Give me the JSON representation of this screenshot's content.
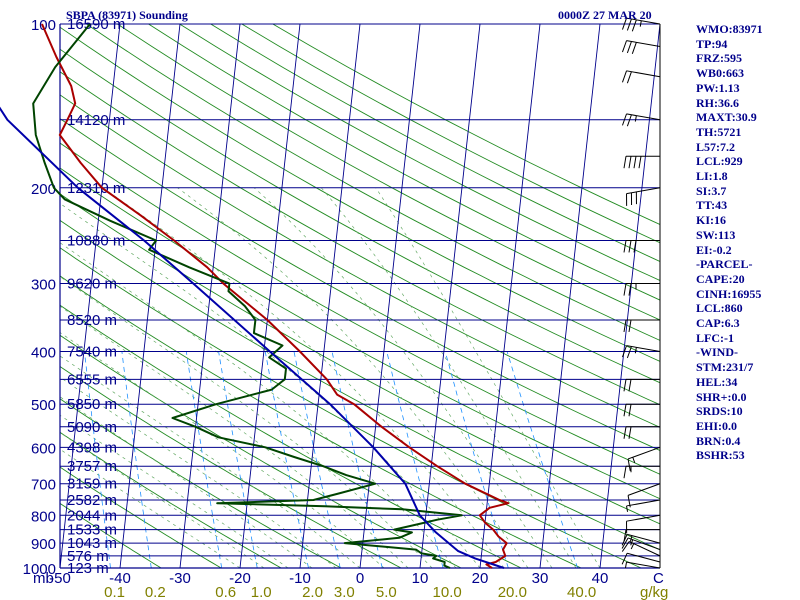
{
  "header": {
    "station": "SBPA (83971) Sounding",
    "time": "0000Z 27 MAR 20"
  },
  "indices": [
    "WMO:83971",
    "TP:94",
    "FRZ:595",
    "WB0:663",
    "PW:1.13",
    "RH:36.6",
    "MAXT:30.9",
    "TH:5721",
    "L57:7.2",
    "LCL:929",
    "LI:1.8",
    "SI:3.7",
    "TT:43",
    "KI:16",
    "SW:113",
    "EI:-0.2",
    "-PARCEL-",
    "CAPE:20",
    "CINH:16955",
    "LCL:860",
    "CAP:6.3",
    "LFC:-1",
    "-WIND-",
    "STM:231/7",
    "HEL:34",
    "SHR+:0.0",
    "SRDS:10",
    "EHI:0.0",
    "BRN:0.4",
    "BSHR:53"
  ],
  "colors": {
    "isobar": "#00008b",
    "isotherm": "#00008b",
    "dry_adiabat": "#228b22",
    "moist_adiabat": "#66aa66",
    "mixing_ratio": "#1e90ff",
    "temperature": "#aa0000",
    "dewpoint": "#004400",
    "parcel": "#0000aa",
    "barb": "#000000",
    "mixing_ratio_label": "#808000",
    "label": "#00008b"
  },
  "chart_data": {
    "type": "line",
    "title": "SBPA (83971) Sounding",
    "subtitle": "0000Z 27 MAR 20",
    "xlabel": "C",
    "ylabel": "mb",
    "x_unit_label": "C",
    "y_unit_label": "mb",
    "mixing_ratio_unit": "g/kg",
    "skew": "skew-T log-P",
    "y_scale": "log",
    "ylim": [
      1000,
      100
    ],
    "xlim": [
      -50,
      50
    ],
    "pressure_ticks": [
      100,
      200,
      300,
      400,
      500,
      600,
      700,
      800,
      900,
      1000
    ],
    "pressure_tick_labels": [
      "100",
      "200",
      "300",
      "400",
      "500",
      "600",
      "700",
      "800",
      "900",
      "1000"
    ],
    "temperature_ticks": [
      -50,
      -40,
      -30,
      -20,
      -10,
      0,
      10,
      20,
      30,
      40
    ],
    "temperature_tick_labels": [
      "-50",
      "-40",
      "-30",
      "-20",
      "-10",
      "0",
      "10",
      "20",
      "30",
      "40"
    ],
    "mixing_ratio_ticks": [
      0.1,
      0.2,
      0.6,
      1.0,
      2.0,
      3.0,
      5.0,
      10.0,
      20.0,
      40.0
    ],
    "mixing_ratio_tick_labels": [
      "0.1",
      "0.2",
      "0.6",
      "1.0",
      "2.0",
      "3.0",
      "5.0",
      "10.0",
      "20.0",
      "40.0"
    ],
    "height_levels": [
      {
        "p": 100,
        "label": "16590 m"
      },
      {
        "p": 150,
        "label": "14120 m"
      },
      {
        "p": 200,
        "label": "12310 m"
      },
      {
        "p": 250,
        "label": "10880 m"
      },
      {
        "p": 300,
        "label": "9620 m"
      },
      {
        "p": 350,
        "label": "8520 m"
      },
      {
        "p": 400,
        "label": "7540 m"
      },
      {
        "p": 450,
        "label": "6555 m"
      },
      {
        "p": 500,
        "label": "5850 m"
      },
      {
        "p": 550,
        "label": "5090 m"
      },
      {
        "p": 600,
        "label": "4398 m"
      },
      {
        "p": 650,
        "label": "3757 m"
      },
      {
        "p": 700,
        "label": "3159 m"
      },
      {
        "p": 750,
        "label": "2582 m"
      },
      {
        "p": 800,
        "label": "2044 m"
      },
      {
        "p": 850,
        "label": "1533 m"
      },
      {
        "p": 900,
        "label": "1043 m"
      },
      {
        "p": 950,
        "label": "576 m"
      },
      {
        "p": 1000,
        "label": "123 m"
      }
    ],
    "series": [
      {
        "role": "temperature",
        "points": [
          [
            1000,
            22
          ],
          [
            985,
            21
          ],
          [
            975,
            22.5
          ],
          [
            950,
            24
          ],
          [
            925,
            23.5
          ],
          [
            900,
            24
          ],
          [
            875,
            22.5
          ],
          [
            850,
            21.5
          ],
          [
            825,
            20
          ],
          [
            800,
            19
          ],
          [
            775,
            20.5
          ],
          [
            760,
            23.5
          ],
          [
            750,
            22
          ],
          [
            700,
            16
          ],
          [
            650,
            11
          ],
          [
            600,
            6
          ],
          [
            550,
            1
          ],
          [
            500,
            -4
          ],
          [
            480,
            -7
          ],
          [
            450,
            -9
          ],
          [
            400,
            -14
          ],
          [
            350,
            -20
          ],
          [
            300,
            -28
          ],
          [
            280,
            -31
          ],
          [
            250,
            -37
          ],
          [
            225,
            -43
          ],
          [
            200,
            -50
          ],
          [
            180,
            -54
          ],
          [
            160,
            -58
          ],
          [
            150,
            -57
          ],
          [
            140,
            -56
          ],
          [
            130,
            -57
          ],
          [
            115,
            -60
          ],
          [
            100,
            -63
          ]
        ]
      },
      {
        "role": "dewpoint",
        "points": [
          [
            1000,
            15
          ],
          [
            990,
            14
          ],
          [
            975,
            14
          ],
          [
            960,
            12
          ],
          [
            950,
            12.5
          ],
          [
            940,
            10
          ],
          [
            925,
            9
          ],
          [
            900,
            -3
          ],
          [
            880,
            6
          ],
          [
            860,
            8
          ],
          [
            850,
            5
          ],
          [
            830,
            9
          ],
          [
            815,
            12
          ],
          [
            800,
            16
          ],
          [
            780,
            6
          ],
          [
            770,
            -7
          ],
          [
            760,
            -25
          ],
          [
            750,
            -9
          ],
          [
            730,
            -5
          ],
          [
            700,
            1
          ],
          [
            675,
            -4
          ],
          [
            650,
            -8
          ],
          [
            625,
            -13
          ],
          [
            600,
            -18
          ],
          [
            575,
            -26
          ],
          [
            550,
            -30
          ],
          [
            530,
            -34
          ],
          [
            500,
            -27
          ],
          [
            470,
            -18
          ],
          [
            450,
            -16
          ],
          [
            430,
            -16
          ],
          [
            410,
            -19
          ],
          [
            390,
            -17
          ],
          [
            370,
            -22
          ],
          [
            350,
            -22
          ],
          [
            330,
            -24
          ],
          [
            310,
            -27
          ],
          [
            300,
            -27
          ],
          [
            280,
            -34
          ],
          [
            260,
            -41
          ],
          [
            250,
            -40
          ],
          [
            230,
            -48
          ],
          [
            210,
            -56
          ],
          [
            200,
            -58
          ],
          [
            180,
            -60
          ],
          [
            160,
            -62
          ],
          [
            140,
            -63
          ],
          [
            120,
            -60
          ],
          [
            100,
            -55
          ]
        ]
      },
      {
        "role": "parcel",
        "points": [
          [
            1000,
            24
          ],
          [
            960,
            19
          ],
          [
            930,
            16
          ],
          [
            860,
            12
          ],
          [
            800,
            9
          ],
          [
            700,
            6
          ],
          [
            600,
            0
          ],
          [
            500,
            -8
          ],
          [
            400,
            -19
          ],
          [
            300,
            -33
          ],
          [
            250,
            -42
          ],
          [
            200,
            -54
          ],
          [
            150,
            -67
          ],
          [
            115,
            -75
          ]
        ]
      }
    ],
    "wind_barbs": [
      {
        "p": 1000,
        "dir": 280,
        "spd": 5
      },
      {
        "p": 975,
        "dir": 285,
        "spd": 10
      },
      {
        "p": 950,
        "dir": 295,
        "spd": 15
      },
      {
        "p": 925,
        "dir": 290,
        "spd": 15
      },
      {
        "p": 900,
        "dir": 285,
        "spd": 15
      },
      {
        "p": 850,
        "dir": 270,
        "spd": 10
      },
      {
        "p": 800,
        "dir": 260,
        "spd": 10
      },
      {
        "p": 750,
        "dir": 260,
        "spd": 5
      },
      {
        "p": 700,
        "dir": 250,
        "spd": 10
      },
      {
        "p": 650,
        "dir": 270,
        "spd": 15
      },
      {
        "p": 600,
        "dir": 250,
        "spd": 15
      },
      {
        "p": 550,
        "dir": 270,
        "spd": 20
      },
      {
        "p": 500,
        "dir": 270,
        "spd": 20
      },
      {
        "p": 450,
        "dir": 270,
        "spd": 20
      },
      {
        "p": 400,
        "dir": 280,
        "spd": 25
      },
      {
        "p": 350,
        "dir": 270,
        "spd": 20
      },
      {
        "p": 300,
        "dir": 270,
        "spd": 25
      },
      {
        "p": 250,
        "dir": 270,
        "spd": 30
      },
      {
        "p": 200,
        "dir": 260,
        "spd": 30
      },
      {
        "p": 175,
        "dir": 270,
        "spd": 40
      },
      {
        "p": 150,
        "dir": 280,
        "spd": 25
      },
      {
        "p": 125,
        "dir": 280,
        "spd": 20
      },
      {
        "p": 110,
        "dir": 280,
        "spd": 30
      },
      {
        "p": 100,
        "dir": 280,
        "spd": 35
      }
    ],
    "grid": true,
    "legend": "none"
  }
}
